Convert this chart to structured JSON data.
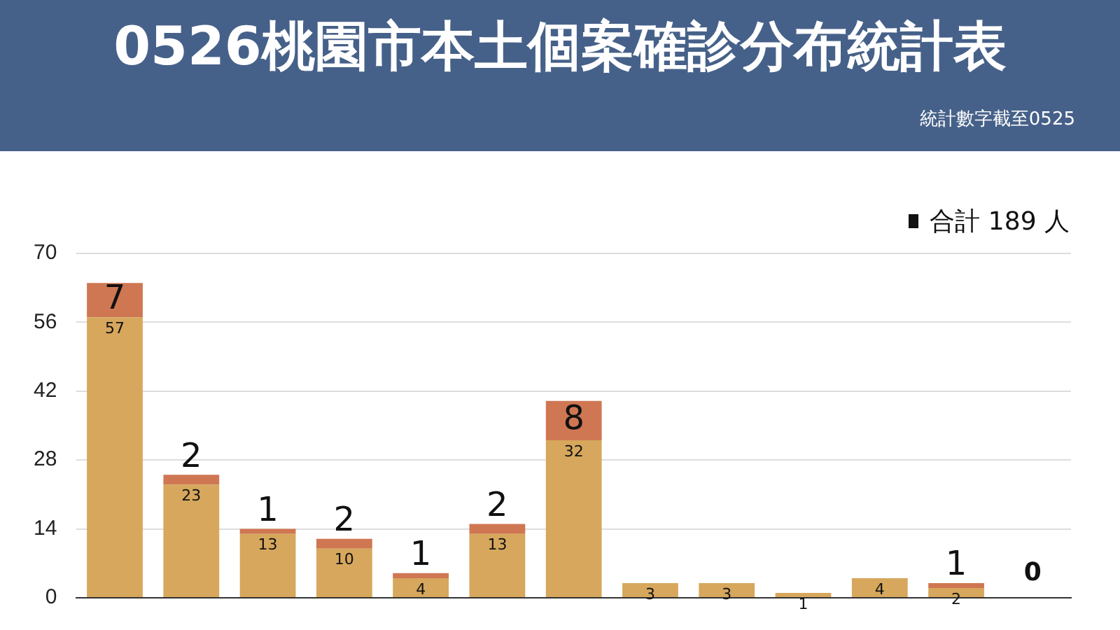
{
  "chart_data": {
    "type": "bar",
    "title": "0526桃園市本土個案確診分布統計表",
    "subtitle": "統計數字截至0525",
    "stacked": true,
    "categories": [
      null,
      null,
      null,
      null,
      null,
      null,
      null,
      null,
      null,
      null,
      null,
      null,
      null
    ],
    "series": [
      {
        "color": "#d6a75c",
        "values": [
          57,
          23,
          13,
          10,
          4,
          13,
          32,
          3,
          3,
          1,
          4,
          2,
          0
        ],
        "value_labels": [
          "57",
          "23",
          "13",
          "10",
          "4",
          "13",
          "32",
          "3",
          "3",
          "1",
          "4",
          "2",
          null
        ]
      },
      {
        "color": "#cf7752",
        "values": [
          7,
          2,
          1,
          2,
          1,
          2,
          8,
          null,
          null,
          null,
          null,
          1,
          0
        ],
        "value_labels": [
          "7",
          "2",
          "1",
          "2",
          "1",
          "2",
          "8",
          null,
          null,
          null,
          null,
          "1",
          "0"
        ]
      }
    ],
    "ylim": [
      0,
      70
    ],
    "yticks": [
      0,
      14,
      28,
      42,
      56,
      70
    ],
    "grid": "y",
    "tick_labels": "y",
    "annotations": [
      "合計 189 人"
    ]
  }
}
